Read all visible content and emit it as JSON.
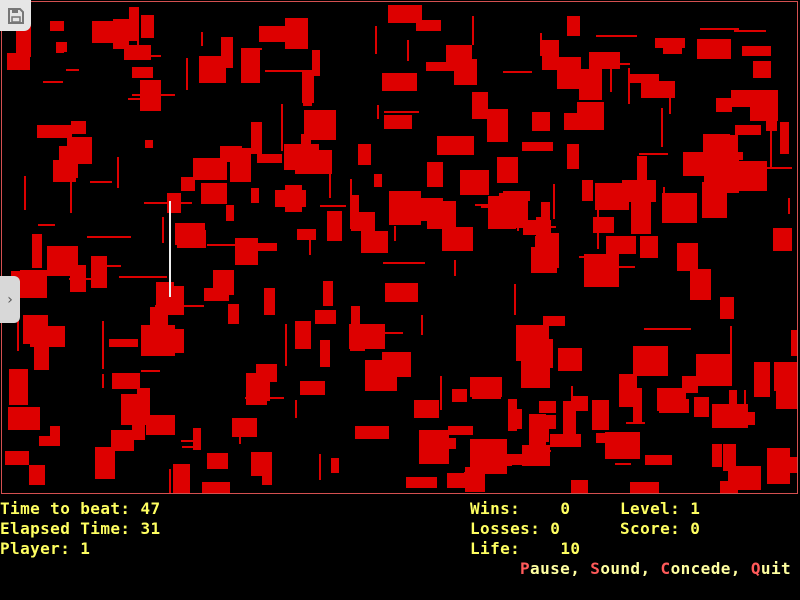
{
  "status": {
    "time_to_beat_label": "Time to beat:",
    "time_to_beat": "47",
    "elapsed_label": "Elapsed Time:",
    "elapsed": "31",
    "player_label": "Player:",
    "player": "1",
    "wins_label": "Wins:",
    "wins": "0",
    "losses_label": "Losses:",
    "losses": "0",
    "life_label": "Life:",
    "life": "10",
    "level_label": "Level:",
    "level": "1",
    "score_label": "Score:",
    "score": "0"
  },
  "menu": [
    {
      "key": "P",
      "rest": "ause",
      "sep": ", "
    },
    {
      "key": "S",
      "rest": "ound",
      "sep": ", "
    },
    {
      "key": "C",
      "rest": "oncede",
      "sep": ", "
    },
    {
      "key": "Q",
      "rest": "uit",
      "sep": ""
    }
  ],
  "icons": {
    "save": "floppy-disk-icon",
    "side_tab": "chevron-right-icon"
  },
  "colors": {
    "blocks": "#dd0000",
    "border": "#d45050",
    "text": "#ffff60",
    "hotkey": "#ff5a5a",
    "player": "#f0f0f0"
  }
}
